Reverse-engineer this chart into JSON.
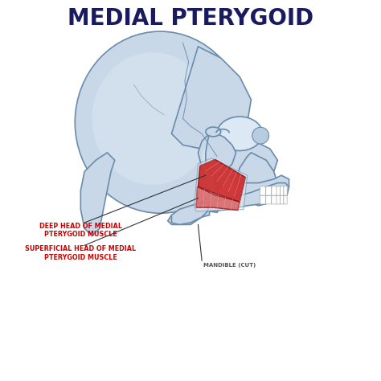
{
  "title": "MEDIAL PTERYGOID",
  "title_color": "#1a1a5e",
  "title_fontsize": 20,
  "title_fontweight": "bold",
  "background_color": "#ffffff",
  "label1_text": "DEEP HEAD OF MEDIAL\nPTERYGOID MUSCLE",
  "label2_text": "SUPERFICIAL HEAD OF MEDIAL\nPTERYGOID MUSCLE",
  "label3_text": "MANDIBLE (CUT)",
  "label_color": "#cc0000",
  "label3_color": "#555555",
  "skull_fill": "#c8d8e8",
  "skull_fill2": "#d8e6f0",
  "skull_outline": "#6a8caa",
  "muscle_deep": "#cc2222",
  "muscle_sup": "#dd5555",
  "fiber_color": "#ff9999",
  "line_color": "#333333",
  "tooth_color": "#ffffff",
  "tooth_edge": "#aaaaaa"
}
